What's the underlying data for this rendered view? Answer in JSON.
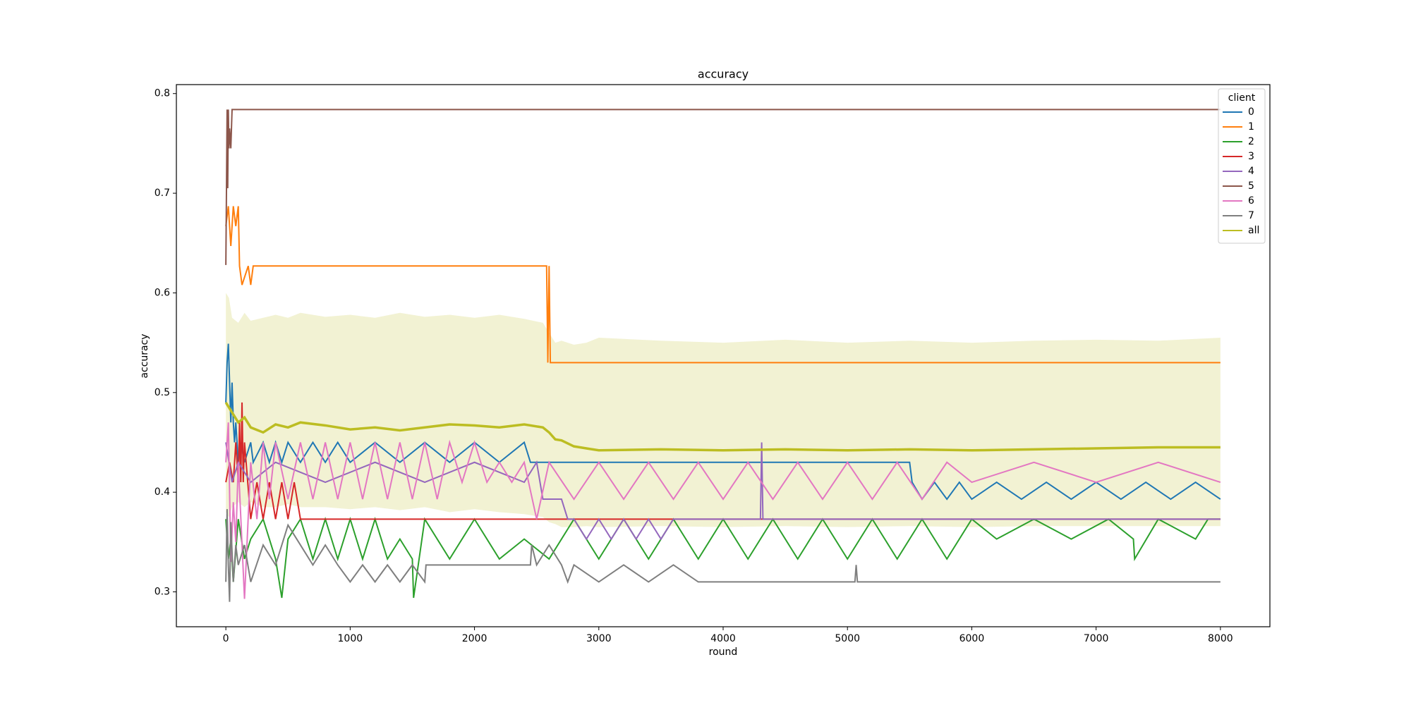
{
  "chart_data": {
    "type": "line",
    "title": "accuracy",
    "x_label": "round",
    "y_label": "accuracy",
    "xlim": [
      -398,
      8398
    ],
    "ylim": [
      0.265,
      0.809
    ],
    "xticks": [
      0,
      1000,
      2000,
      3000,
      4000,
      5000,
      6000,
      7000,
      8000
    ],
    "yticks": [
      0.3,
      0.4,
      0.5,
      0.6,
      0.7,
      0.8
    ],
    "legend_title": "client",
    "legend_position": "upper right",
    "series": [
      {
        "name": "0",
        "color": "#1f77b4",
        "x": [
          0,
          10,
          20,
          30,
          40,
          50,
          60,
          70,
          80,
          100,
          120,
          150,
          200,
          220,
          300,
          350,
          400,
          450,
          500,
          600,
          700,
          800,
          900,
          1000,
          1200,
          1400,
          1600,
          1800,
          2000,
          2200,
          2400,
          2450,
          2460,
          3000,
          4000,
          5000,
          5500,
          5520,
          5600,
          5700,
          5800,
          5900,
          6000,
          6200,
          6400,
          6600,
          6800,
          7000,
          7200,
          7400,
          7600,
          7800,
          8000
        ],
        "values": [
          0.49,
          0.53,
          0.549,
          0.51,
          0.47,
          0.51,
          0.47,
          0.45,
          0.47,
          0.43,
          0.45,
          0.43,
          0.45,
          0.43,
          0.45,
          0.43,
          0.45,
          0.43,
          0.45,
          0.43,
          0.45,
          0.43,
          0.45,
          0.43,
          0.45,
          0.43,
          0.45,
          0.43,
          0.45,
          0.43,
          0.45,
          0.43,
          0.43,
          0.43,
          0.43,
          0.43,
          0.43,
          0.41,
          0.393,
          0.41,
          0.393,
          0.41,
          0.393,
          0.41,
          0.393,
          0.41,
          0.393,
          0.41,
          0.393,
          0.41,
          0.393,
          0.41,
          0.393
        ]
      },
      {
        "name": "1",
        "color": "#ff7f0e",
        "x": [
          0,
          20,
          40,
          60,
          80,
          100,
          110,
          130,
          180,
          200,
          220,
          240,
          2580,
          2590,
          2600,
          2610,
          2620,
          8000
        ],
        "values": [
          0.667,
          0.687,
          0.647,
          0.687,
          0.667,
          0.687,
          0.627,
          0.608,
          0.627,
          0.608,
          0.627,
          0.627,
          0.627,
          0.53,
          0.627,
          0.53,
          0.53,
          0.53
        ]
      },
      {
        "name": "2",
        "color": "#2ca02c",
        "x": [
          0,
          20,
          40,
          60,
          100,
          150,
          200,
          300,
          400,
          450,
          500,
          600,
          700,
          800,
          900,
          1000,
          1100,
          1200,
          1300,
          1400,
          1500,
          1510,
          1600,
          1800,
          2000,
          2200,
          2400,
          2600,
          2800,
          3000,
          3200,
          3400,
          3600,
          3800,
          4000,
          4200,
          4400,
          4600,
          4800,
          5000,
          5200,
          5400,
          5600,
          5800,
          6000,
          6200,
          6500,
          6800,
          7100,
          7300,
          7310,
          7500,
          7800,
          7900,
          8000
        ],
        "values": [
          0.373,
          0.333,
          0.353,
          0.31,
          0.373,
          0.333,
          0.353,
          0.373,
          0.333,
          0.294,
          0.353,
          0.373,
          0.333,
          0.373,
          0.333,
          0.373,
          0.333,
          0.373,
          0.333,
          0.353,
          0.333,
          0.294,
          0.373,
          0.333,
          0.373,
          0.333,
          0.353,
          0.333,
          0.373,
          0.333,
          0.373,
          0.333,
          0.373,
          0.333,
          0.373,
          0.333,
          0.373,
          0.333,
          0.373,
          0.333,
          0.373,
          0.333,
          0.373,
          0.333,
          0.373,
          0.353,
          0.373,
          0.353,
          0.373,
          0.353,
          0.333,
          0.373,
          0.353,
          0.373,
          0.373
        ]
      },
      {
        "name": "3",
        "color": "#d62728",
        "x": [
          0,
          30,
          60,
          80,
          100,
          110,
          120,
          130,
          140,
          150,
          200,
          250,
          300,
          350,
          400,
          450,
          500,
          550,
          600,
          650,
          8000
        ],
        "values": [
          0.41,
          0.43,
          0.41,
          0.45,
          0.41,
          0.47,
          0.41,
          0.49,
          0.41,
          0.45,
          0.373,
          0.41,
          0.373,
          0.41,
          0.373,
          0.41,
          0.373,
          0.41,
          0.373,
          0.373,
          0.373
        ]
      },
      {
        "name": "4",
        "color": "#9467bd",
        "x": [
          0,
          50,
          100,
          200,
          400,
          800,
          1200,
          1600,
          2000,
          2400,
          2500,
          2550,
          2600,
          2700,
          2750,
          2800,
          2900,
          3000,
          3100,
          3200,
          3300,
          3400,
          3500,
          3600,
          3700,
          4000,
          4300,
          4310,
          4320,
          5000,
          8000
        ],
        "values": [
          0.45,
          0.41,
          0.43,
          0.41,
          0.43,
          0.41,
          0.43,
          0.41,
          0.43,
          0.41,
          0.43,
          0.393,
          0.393,
          0.393,
          0.373,
          0.373,
          0.353,
          0.373,
          0.353,
          0.373,
          0.353,
          0.373,
          0.353,
          0.373,
          0.373,
          0.373,
          0.373,
          0.45,
          0.373,
          0.373,
          0.373
        ]
      },
      {
        "name": "5",
        "color": "#8c564b",
        "x": [
          0,
          5,
          10,
          15,
          20,
          25,
          30,
          40,
          50,
          60,
          8000
        ],
        "values": [
          0.628,
          0.705,
          0.784,
          0.705,
          0.784,
          0.745,
          0.765,
          0.745,
          0.784,
          0.784,
          0.784
        ]
      },
      {
        "name": "6",
        "color": "#e377c2",
        "x": [
          0,
          20,
          40,
          60,
          80,
          100,
          150,
          200,
          250,
          300,
          350,
          400,
          500,
          600,
          700,
          800,
          900,
          1000,
          1100,
          1200,
          1300,
          1400,
          1500,
          1600,
          1700,
          1800,
          1900,
          2000,
          2100,
          2200,
          2300,
          2400,
          2500,
          2600,
          2800,
          3000,
          3200,
          3400,
          3600,
          3800,
          4000,
          4200,
          4400,
          4600,
          4800,
          5000,
          5200,
          5400,
          5600,
          5800,
          6000,
          6500,
          7000,
          7500,
          8000
        ],
        "values": [
          0.43,
          0.47,
          0.33,
          0.39,
          0.35,
          0.43,
          0.293,
          0.43,
          0.373,
          0.45,
          0.393,
          0.45,
          0.393,
          0.45,
          0.393,
          0.45,
          0.393,
          0.45,
          0.393,
          0.45,
          0.393,
          0.45,
          0.393,
          0.45,
          0.393,
          0.45,
          0.41,
          0.45,
          0.41,
          0.43,
          0.41,
          0.43,
          0.373,
          0.43,
          0.393,
          0.43,
          0.393,
          0.43,
          0.393,
          0.43,
          0.393,
          0.43,
          0.393,
          0.43,
          0.393,
          0.43,
          0.393,
          0.43,
          0.393,
          0.43,
          0.41,
          0.43,
          0.41,
          0.43,
          0.41
        ]
      },
      {
        "name": "7",
        "color": "#7f7f7f",
        "x": [
          0,
          10,
          20,
          30,
          40,
          60,
          80,
          100,
          150,
          200,
          300,
          400,
          500,
          600,
          700,
          800,
          900,
          1000,
          1100,
          1200,
          1300,
          1400,
          1500,
          1600,
          1610,
          2450,
          2460,
          2500,
          2600,
          2700,
          2750,
          2800,
          3000,
          3200,
          3400,
          3600,
          3800,
          4000,
          4500,
          5060,
          5070,
          5080,
          8000
        ],
        "values": [
          0.31,
          0.383,
          0.327,
          0.29,
          0.37,
          0.31,
          0.347,
          0.327,
          0.347,
          0.31,
          0.347,
          0.327,
          0.367,
          0.347,
          0.327,
          0.347,
          0.327,
          0.31,
          0.327,
          0.31,
          0.327,
          0.31,
          0.327,
          0.31,
          0.327,
          0.327,
          0.347,
          0.327,
          0.347,
          0.327,
          0.31,
          0.327,
          0.31,
          0.327,
          0.31,
          0.327,
          0.31,
          0.31,
          0.31,
          0.31,
          0.327,
          0.31,
          0.31
        ]
      },
      {
        "name": "all",
        "color": "#bcbd22",
        "x": [
          0,
          25,
          50,
          100,
          150,
          200,
          300,
          400,
          500,
          600,
          800,
          1000,
          1200,
          1400,
          1600,
          1800,
          2000,
          2200,
          2400,
          2550,
          2600,
          2650,
          2700,
          2800,
          2900,
          3000,
          3500,
          4000,
          4500,
          5000,
          5500,
          6000,
          6500,
          7000,
          7500,
          8000
        ],
        "values": [
          0.49,
          0.485,
          0.48,
          0.47,
          0.475,
          0.465,
          0.46,
          0.468,
          0.465,
          0.47,
          0.467,
          0.463,
          0.465,
          0.462,
          0.465,
          0.468,
          0.467,
          0.465,
          0.468,
          0.465,
          0.46,
          0.453,
          0.452,
          0.446,
          0.444,
          0.442,
          0.443,
          0.442,
          0.443,
          0.442,
          0.443,
          0.442,
          0.443,
          0.444,
          0.445,
          0.445
        ],
        "upper": [
          0.6,
          0.595,
          0.575,
          0.57,
          0.58,
          0.572,
          0.575,
          0.578,
          0.575,
          0.58,
          0.576,
          0.578,
          0.575,
          0.58,
          0.576,
          0.578,
          0.575,
          0.578,
          0.574,
          0.57,
          0.56,
          0.55,
          0.552,
          0.548,
          0.55,
          0.555,
          0.552,
          0.55,
          0.553,
          0.55,
          0.552,
          0.55,
          0.552,
          0.553,
          0.552,
          0.555
        ],
        "lower": [
          0.38,
          0.375,
          0.385,
          0.39,
          0.385,
          0.39,
          0.385,
          0.385,
          0.388,
          0.385,
          0.385,
          0.383,
          0.385,
          0.382,
          0.385,
          0.38,
          0.383,
          0.38,
          0.378,
          0.375,
          0.37,
          0.368,
          0.365,
          0.365,
          0.366,
          0.365,
          0.366,
          0.365,
          0.366,
          0.365,
          0.366,
          0.365,
          0.366,
          0.366,
          0.366,
          0.366
        ]
      }
    ]
  }
}
